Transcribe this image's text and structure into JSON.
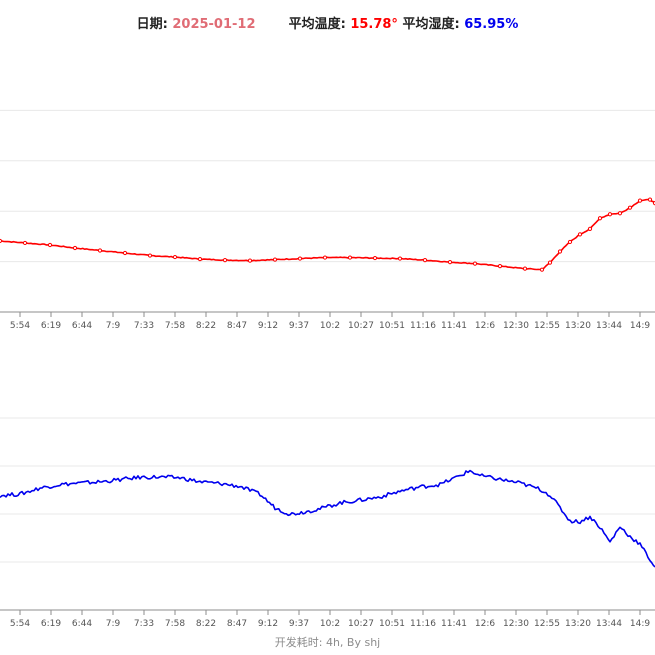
{
  "header": {
    "date_label": "日期:",
    "date_value": "2025-01-12",
    "avg_temp_label": "平均温度:",
    "avg_temp_value": "15.78°",
    "avg_humidity_label": "平均湿度:",
    "avg_humidity_value": "65.95%"
  },
  "colors": {
    "date": "#e06c75",
    "temperature": "#ff0000",
    "humidity": "#0000ee",
    "grid": "#e8e8e8",
    "axis": "#8c8c8c",
    "tick_text": "#555555"
  },
  "footer": {
    "text": "开发耗时: 4h, By shj"
  },
  "chart_data": [
    {
      "type": "line",
      "series": [
        {
          "color": "#ff0000",
          "x": [
            0,
            25,
            50,
            75,
            100,
            125,
            150,
            175,
            200,
            225,
            250,
            275,
            300,
            325,
            350,
            375,
            400,
            425,
            450,
            475,
            500,
            525,
            542,
            550,
            560,
            570,
            580,
            590,
            600,
            610,
            620,
            630,
            640,
            650,
            655
          ],
          "y": [
            9.1,
            8.7,
            8.3,
            7.7,
            7.2,
            6.7,
            6.2,
            5.9,
            5.5,
            5.3,
            5.2,
            5.4,
            5.6,
            5.8,
            5.8,
            5.7,
            5.6,
            5.3,
            4.9,
            4.6,
            4.1,
            3.6,
            3.4,
            4.8,
            7.0,
            8.9,
            10.4,
            11.5,
            13.6,
            14.4,
            14.6,
            15.7,
            17.1,
            17.3,
            16.6
          ]
        }
      ],
      "x_ticks": [
        "5:54",
        "6:19",
        "6:44",
        "7:9",
        "7:33",
        "7:58",
        "8:22",
        "8:47",
        "9:12",
        "9:37",
        "10:2",
        "10:27",
        "10:51",
        "11:16",
        "11:41",
        "12:6",
        "12:30",
        "12:55",
        "13:20",
        "13:44",
        "14:9"
      ],
      "ylim": [
        -5,
        45
      ],
      "grid": true
    },
    {
      "type": "line",
      "series": [
        {
          "color": "#0000ee",
          "x": [
            0,
            20,
            40,
            60,
            80,
            100,
            120,
            140,
            160,
            180,
            200,
            220,
            240,
            260,
            275,
            290,
            305,
            320,
            340,
            360,
            380,
            400,
            420,
            440,
            460,
            470,
            480,
            500,
            520,
            540,
            550,
            560,
            570,
            580,
            590,
            600,
            610,
            620,
            630,
            640,
            650,
            655
          ],
          "y": [
            67.7,
            68.3,
            70.8,
            72.3,
            72.9,
            73.4,
            74.3,
            75.3,
            75.4,
            75.1,
            73.4,
            72.7,
            71.5,
            68.2,
            62.6,
            59.9,
            60.9,
            62.2,
            64.6,
            65.8,
            67.1,
            69.5,
            71.3,
            72.3,
            76.0,
            78.0,
            76.0,
            74.4,
            72.9,
            70.3,
            67.9,
            62.6,
            57.1,
            56.8,
            58.9,
            54.5,
            48.3,
            54.7,
            50.6,
            47.4,
            41.0,
            37.9
          ]
        }
      ],
      "x_ticks": [
        "5:54",
        "6:19",
        "6:44",
        "7:9",
        "7:33",
        "7:58",
        "8:22",
        "8:47",
        "9:12",
        "9:37",
        "10:2",
        "10:27",
        "10:51",
        "11:16",
        "11:41",
        "12:6",
        "12:30",
        "12:55",
        "13:20",
        "13:44",
        "14:9"
      ],
      "ylim": [
        20,
        120
      ],
      "grid": true
    }
  ]
}
